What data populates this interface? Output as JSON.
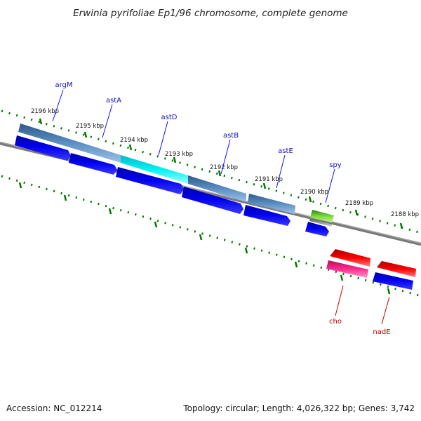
{
  "title": "Erwinia pyrifoliae Ep1/96 chromosome, complete genome",
  "footer": {
    "accession": "Accession: NC_012214",
    "summary": "Topology: circular; Length: 4,026,322 bp; Genes: 3,742"
  },
  "ruler_labels": [
    "2196 kbp",
    "2195 kbp",
    "2194 kbp",
    "2193 kbp",
    "2192 kbp",
    "2191 kbp",
    "2190 kbp",
    "2189 kbp",
    "2188 kbp"
  ],
  "genes_top": [
    {
      "name": "argM"
    },
    {
      "name": "astA"
    },
    {
      "name": "astD"
    },
    {
      "name": "astB"
    },
    {
      "name": "astE"
    },
    {
      "name": "spy"
    }
  ],
  "genes_bottom": [
    {
      "name": "cho"
    },
    {
      "name": "nadE"
    }
  ],
  "colors": {
    "backbone": "#808080",
    "tick": "#007700",
    "cds": "#0000ee",
    "gene_blue": "#4b7fb5",
    "gene_cyan": "#00e5e5",
    "gene_green": "#66cc33",
    "gene_red": "#ee0000",
    "gene_pink": "#ee2288",
    "label_top": "#1010c0",
    "label_bottom": "#c00000"
  }
}
